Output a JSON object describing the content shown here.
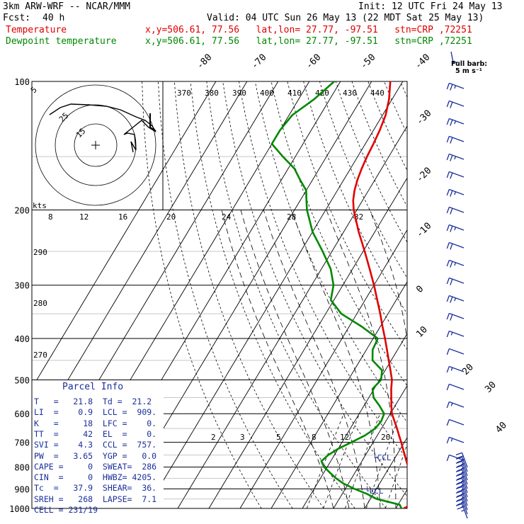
{
  "header": {
    "title_left": "3km ARW-WRF -- NCAR/MMM",
    "init": "Init: 12 UTC Fri 24 May 13",
    "fcst_label": "Fcst:",
    "fcst_value": "40 h",
    "valid": "Valid: 04 UTC Sun 26 May 13 (22 MDT Sat 25 May 13)",
    "temp_label": "Temperature",
    "temp_info": "x,y=506.61, 77.56   lat,lon= 27.77, -97.51   stn=CRP ,72251",
    "dew_label": "Dewpoint temperature",
    "dew_info": "x,y=506.61, 77.56   lat,lon= 27.77, -97.51   stn=CRP ,72251",
    "barb_key_line1": "Full barb:",
    "barb_key_line2": "5 m s⁻¹"
  },
  "parcel_info": {
    "title": "Parcel Info",
    "rows": [
      "T   =   21.8  Td =  21.2",
      "LI  =    0.9  LCL =  909.",
      "K   =     18  LFC =    0.",
      "TT  =     42  EL  =    0.",
      "SVI =    4.3  CCL =  757.",
      "PW  =   3.65  YGP =   0.0",
      "CAPE =     0  SWEAT=  286",
      "CIN  =     0  HWBZ= 4205.",
      "Tc  =   37.9  SHEAR=  36.",
      "SREH =   268  LAPSE=  7.1",
      "CELL = 231/19"
    ]
  },
  "hodograph": {
    "ring_labels": [
      "5",
      "15",
      "25"
    ],
    "u_v": [
      [
        3,
        -1
      ],
      [
        5,
        1
      ],
      [
        7,
        3
      ],
      [
        9,
        4
      ],
      [
        11,
        5
      ],
      [
        8,
        4
      ],
      [
        4,
        2
      ],
      [
        1,
        1
      ],
      [
        -2,
        4
      ],
      [
        -6,
        9
      ],
      [
        -10,
        13
      ],
      [
        -14,
        16
      ],
      [
        -18,
        18
      ],
      [
        -22,
        20
      ],
      [
        -26,
        20
      ],
      [
        -30,
        18
      ],
      [
        -33,
        16
      ],
      [
        -36,
        18
      ],
      [
        -40,
        22
      ]
    ]
  },
  "chart_data": {
    "type": "line",
    "subtype": "skew-T log-P sounding",
    "y_axis": {
      "label": "pressure (hPa)",
      "scale": "log",
      "range": [
        1000,
        100
      ],
      "ticks": [
        "100",
        "200",
        "300",
        "400",
        "500",
        "600",
        "700",
        "800",
        "900",
        "1000"
      ]
    },
    "isotherm_labels": [
      "-80",
      "-70",
      "-60",
      "-50",
      "-40",
      "-30",
      "-20",
      "-10",
      "0",
      "10",
      "20",
      "30",
      "40"
    ],
    "theta_e_labels": [
      "370",
      "380",
      "390",
      "400",
      "410",
      "420",
      "430",
      "440"
    ],
    "dry_adiabat_labels": [
      "290",
      "280",
      "270"
    ],
    "mixing_ratio_labels": [
      "2",
      "3",
      "5",
      "8",
      "12",
      "20"
    ],
    "hodo_speed_label": "kts",
    "hodo_speed_ticks": [
      "8",
      "12",
      "16",
      "20",
      "24",
      "28",
      "32"
    ],
    "level_labels": [
      "CCL",
      "LCL"
    ],
    "series": [
      {
        "name": "Temperature",
        "color": "#e00000",
        "pressure": [
          1000,
          980,
          950,
          925,
          900,
          875,
          850,
          825,
          800,
          775,
          750,
          725,
          700,
          675,
          650,
          625,
          600,
          575,
          550,
          525,
          500,
          475,
          450,
          425,
          400,
          375,
          350,
          325,
          300,
          275,
          250,
          225,
          200,
          190,
          180,
          170,
          160,
          150,
          140,
          130,
          120,
          110,
          100
        ],
        "temp": [
          22.5,
          24.2,
          25.0,
          24.5,
          23.0,
          21.3,
          19.6,
          17.8,
          16.0,
          14.3,
          12.6,
          10.8,
          9.0,
          7.0,
          5.0,
          2.8,
          0.5,
          -1.2,
          -2.8,
          -4.5,
          -6.0,
          -8.3,
          -10.8,
          -13.4,
          -16.2,
          -19.3,
          -22.5,
          -26.1,
          -30.0,
          -34.5,
          -39.5,
          -45.2,
          -51.0,
          -53.0,
          -54.5,
          -55.6,
          -56.4,
          -57.0,
          -57.4,
          -58.0,
          -59.0,
          -61.0,
          -64.0
        ]
      },
      {
        "name": "Dewpoint temperature",
        "color": "#008800",
        "pressure": [
          1000,
          980,
          950,
          925,
          900,
          875,
          850,
          825,
          800,
          775,
          750,
          725,
          700,
          675,
          650,
          625,
          600,
          575,
          550,
          525,
          500,
          475,
          450,
          425,
          400,
          375,
          350,
          325,
          300,
          275,
          250,
          225,
          200,
          190,
          180,
          170,
          160,
          150,
          140,
          130,
          120,
          110,
          100
        ],
        "dewpoint": [
          21.8,
          20.5,
          12.0,
          8.0,
          3.0,
          -1.5,
          -5.0,
          -8.0,
          -11.0,
          -13.0,
          -12.0,
          -10.0,
          -7.0,
          -4.0,
          -2.0,
          -1.5,
          -2.0,
          -5.0,
          -8.5,
          -10.5,
          -9.5,
          -11.0,
          -16.0,
          -18.0,
          -18.5,
          -26.0,
          -35.0,
          -41.0,
          -43.0,
          -47.0,
          -53.0,
          -60.0,
          -66.0,
          -68.0,
          -70.0,
          -74.0,
          -78.0,
          -84.0,
          -90.0,
          -90.0,
          -89.0,
          -85.0,
          -82.0
        ]
      }
    ]
  }
}
